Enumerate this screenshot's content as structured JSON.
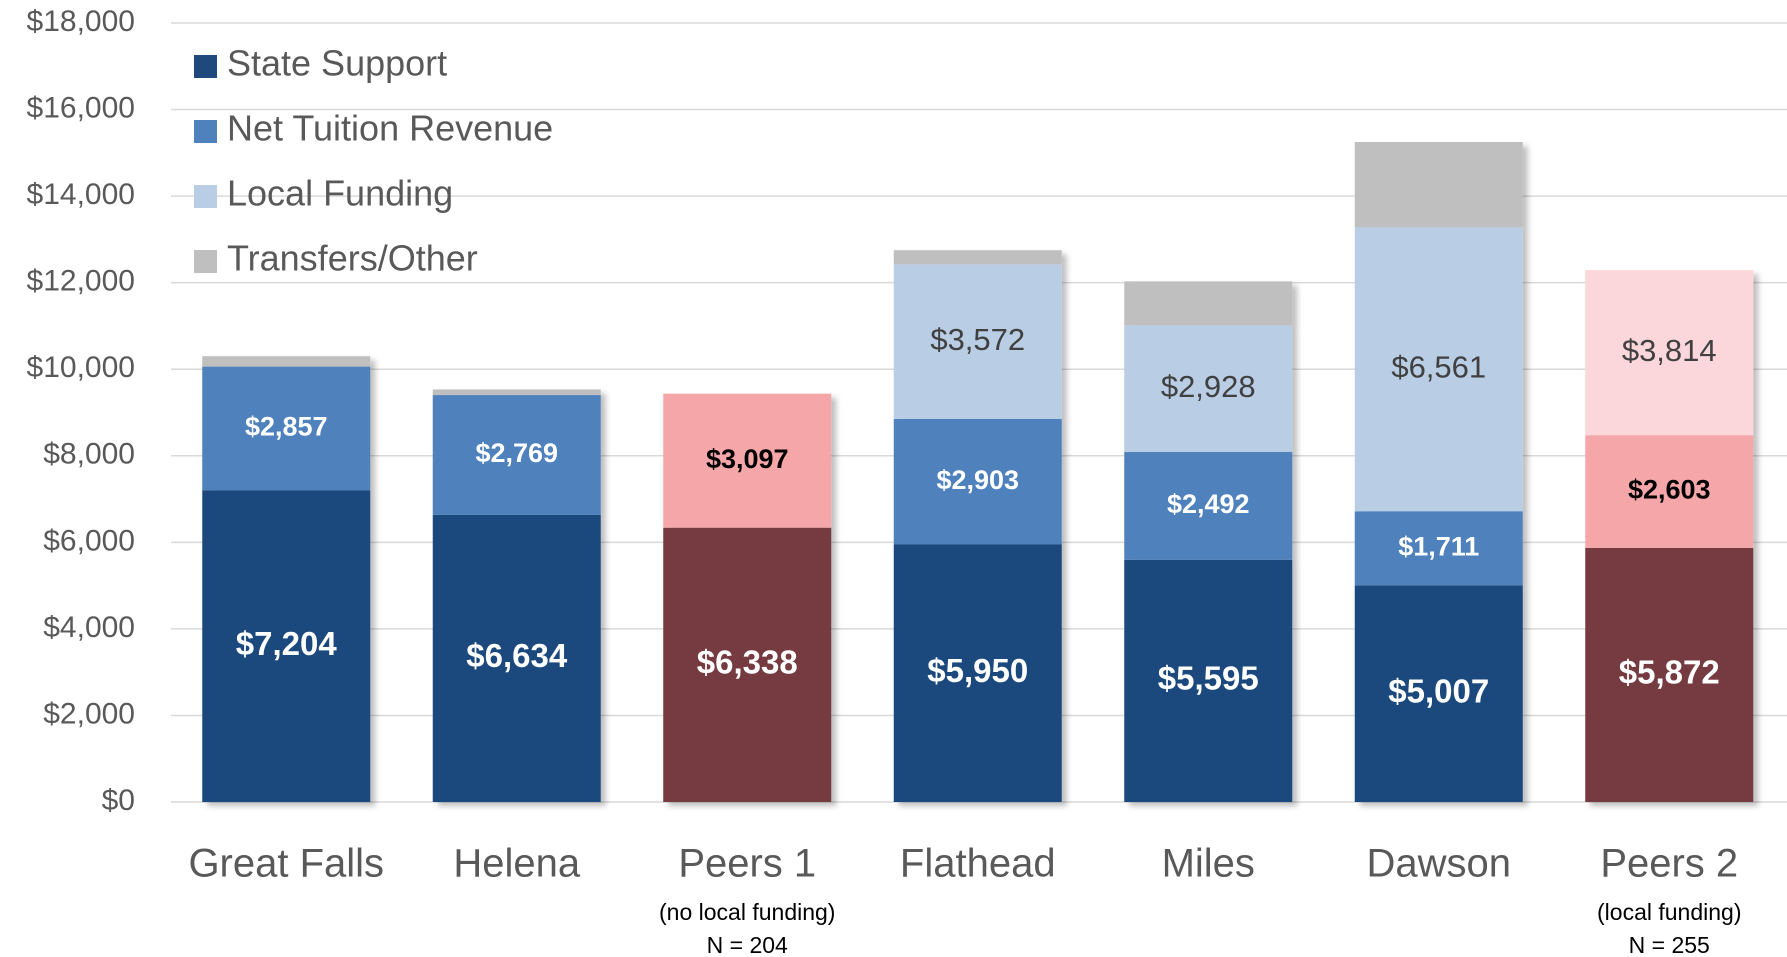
{
  "chart_data": {
    "type": "stacked_bar",
    "categories": [
      "Great Falls",
      "Helena",
      "Peers 1",
      "Flathead",
      "Miles",
      "Dawson",
      "Peers 2"
    ],
    "category_notes": [
      null,
      null,
      [
        "(no local funding)",
        "N = 204"
      ],
      null,
      null,
      null,
      [
        "(local funding)",
        "N = 255"
      ]
    ],
    "series": [
      {
        "name": "State Support",
        "color": "#1f497d",
        "point_colors": [
          "#1f497d",
          "#1f497d",
          "#763a3f",
          "#1f497d",
          "#1f497d",
          "#1f497d",
          "#763a3f"
        ],
        "values": [
          7204,
          6634,
          6338,
          5950,
          5595,
          5007,
          5872
        ],
        "value_labels": [
          "$7,204",
          "$6,634",
          "$6,338",
          "$5,950",
          "$5,595",
          "$5,007",
          "$5,872"
        ]
      },
      {
        "name": "Net Tuition Revenue",
        "color": "#4f81bd",
        "point_colors": [
          "#4f81bd",
          "#4f81bd",
          "#f4a6a8",
          "#4f81bd",
          "#4f81bd",
          "#4f81bd",
          "#f4a6a8"
        ],
        "values": [
          2857,
          2769,
          3097,
          2903,
          2492,
          1711,
          2603
        ],
        "value_labels": [
          "$2,857",
          "$2,769",
          "$3,097",
          "$2,903",
          "$2,492",
          "$1,711",
          "$2,603"
        ]
      },
      {
        "name": "Local Funding",
        "color": "#b9cde5",
        "point_colors": [
          "#b9cde5",
          "#b9cde5",
          "#b9cde5",
          "#b9cde5",
          "#b9cde5",
          "#b9cde5",
          "#fbd6da"
        ],
        "values": [
          null,
          null,
          null,
          3572,
          2928,
          6561,
          3814
        ],
        "value_labels": [
          null,
          null,
          null,
          "$3,572",
          "$2,928",
          "$6,561",
          "$3,814"
        ]
      },
      {
        "name": "Transfers/Other",
        "color": "#bfbfbf",
        "values": [
          240,
          130,
          null,
          325,
          1015,
          1970,
          null
        ]
      }
    ],
    "ylim": [
      0,
      18000
    ],
    "yticks": [
      {
        "value": 0,
        "label": "$0"
      },
      {
        "value": 2000,
        "label": "$2,000"
      },
      {
        "value": 4000,
        "label": "$4,000"
      },
      {
        "value": 6000,
        "label": "$6,000"
      },
      {
        "value": 8000,
        "label": "$8,000"
      },
      {
        "value": 10000,
        "label": "$10,000"
      },
      {
        "value": 12000,
        "label": "$12,000"
      },
      {
        "value": 14000,
        "label": "$14,000"
      },
      {
        "value": 16000,
        "label": "$16,000"
      },
      {
        "value": 18000,
        "label": "$18,000"
      }
    ],
    "grid": true,
    "legend": "top-left"
  }
}
